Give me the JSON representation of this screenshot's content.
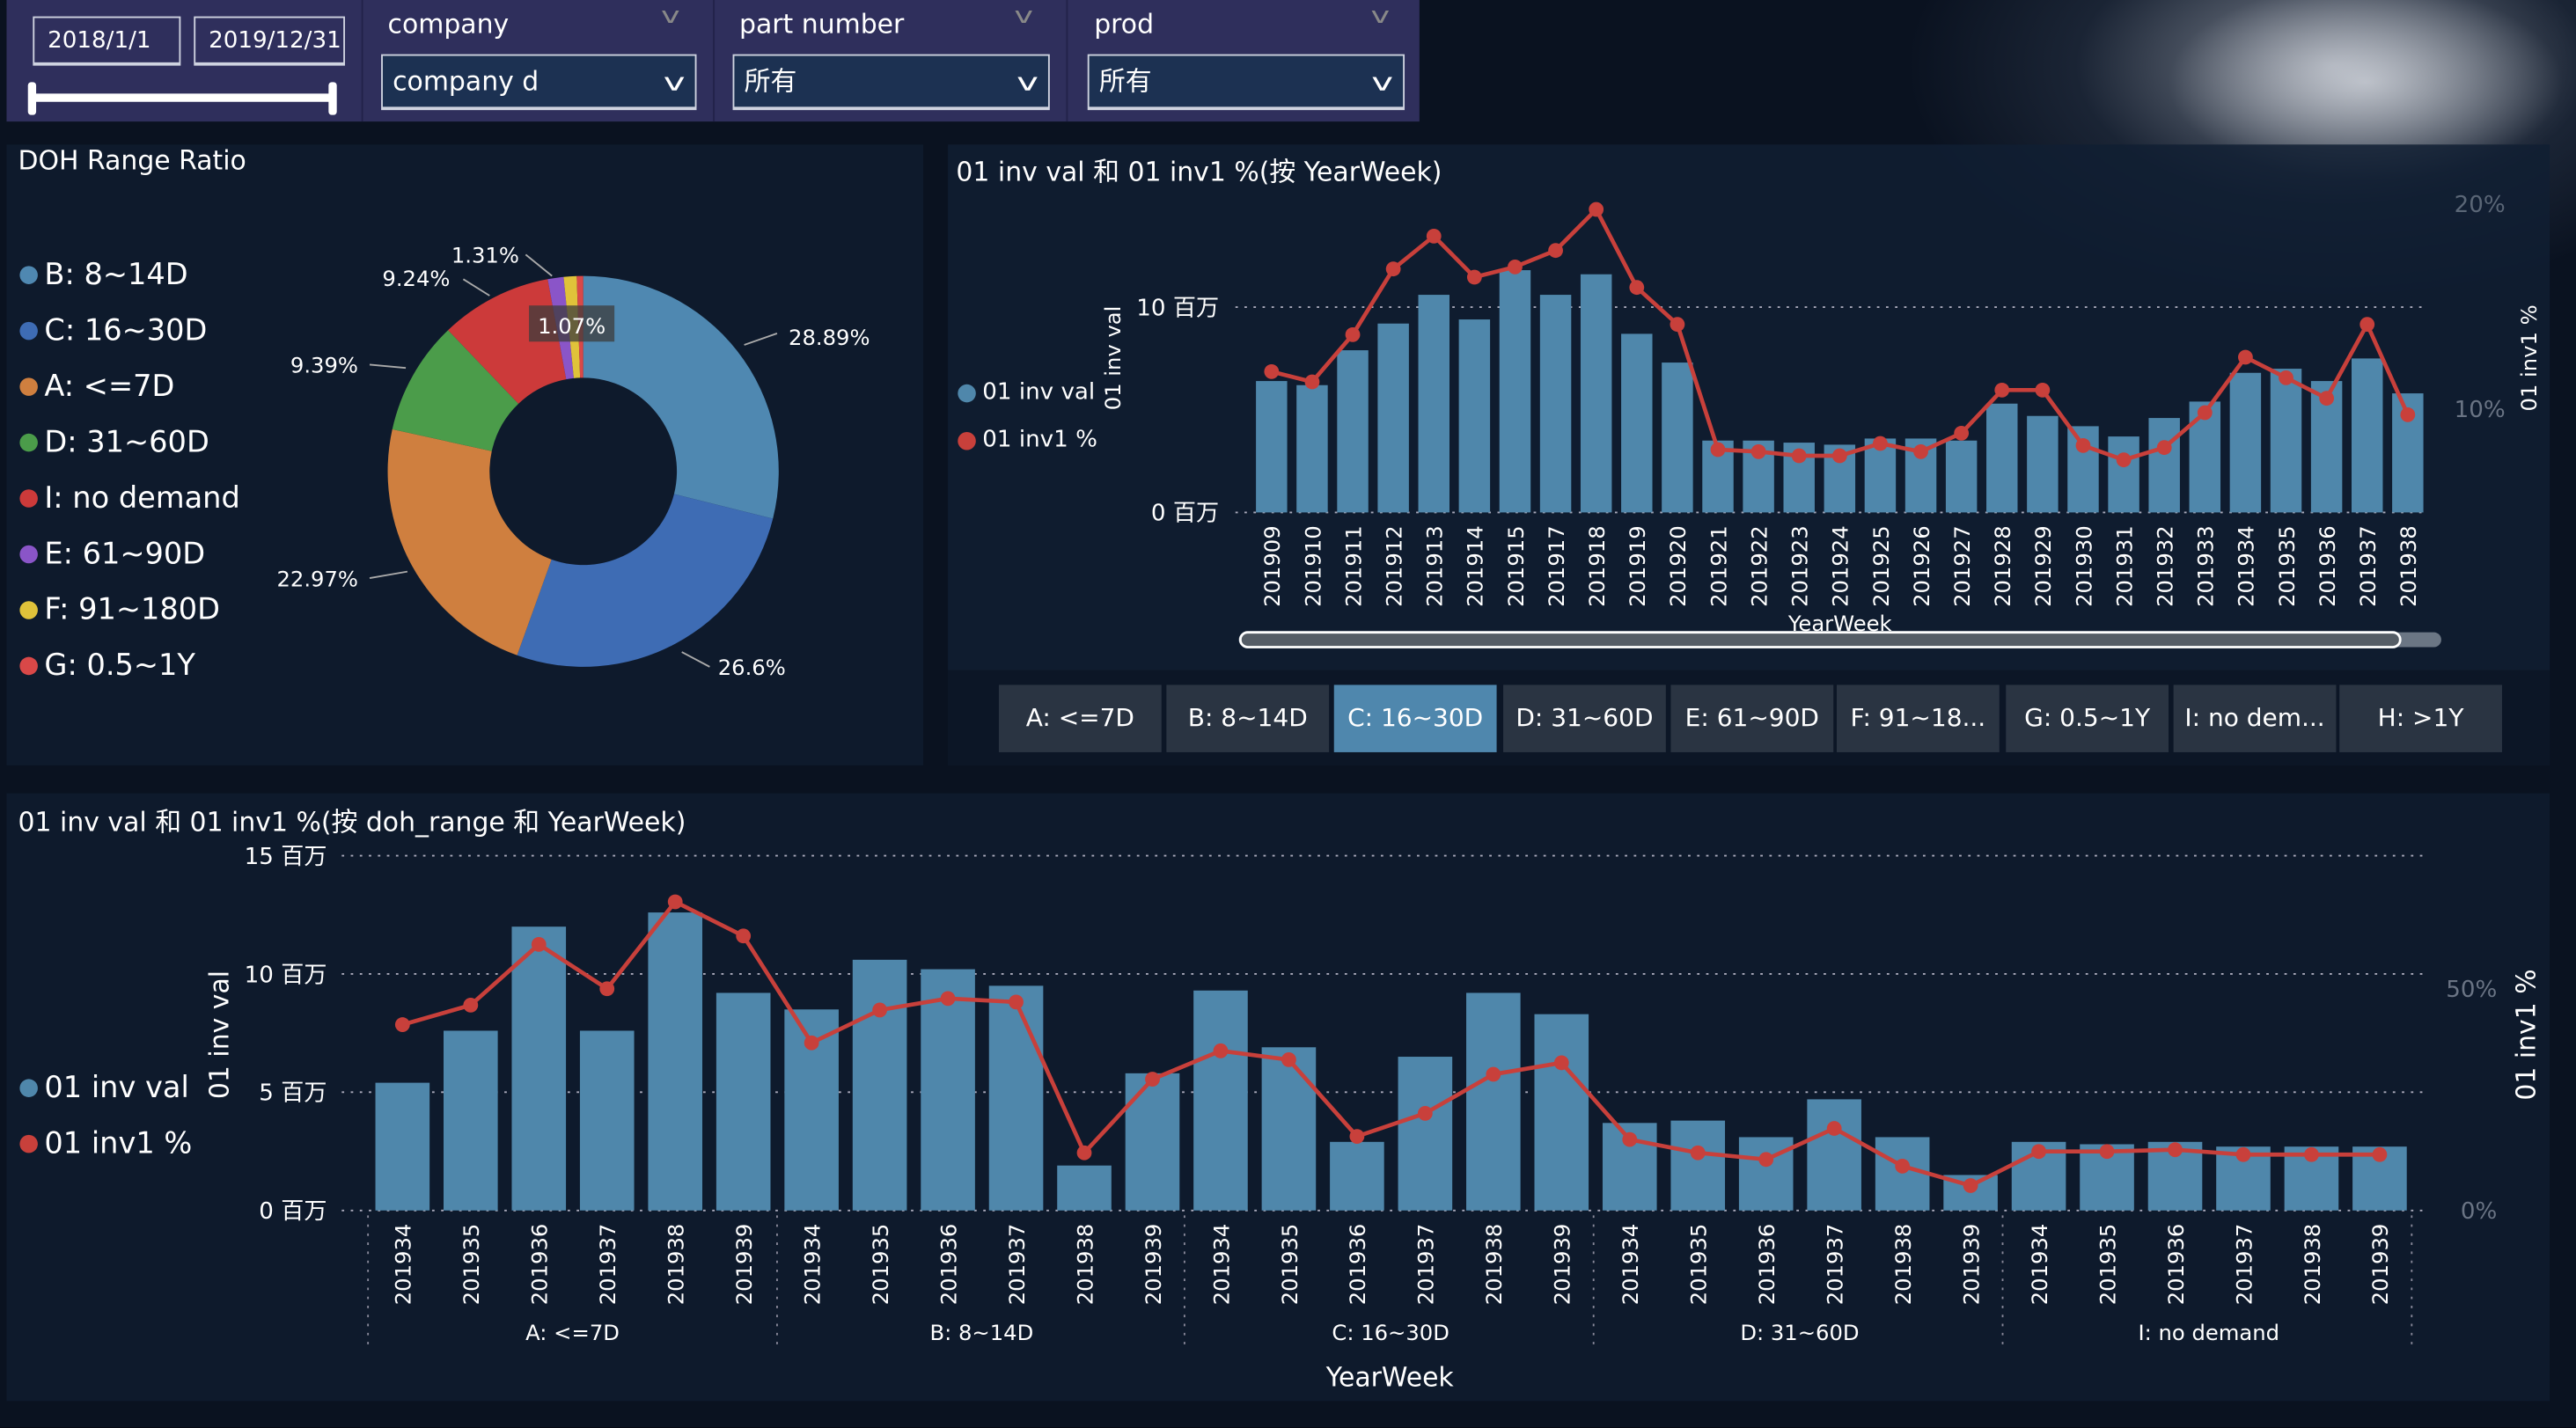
{
  "filters": {
    "date_start": "2018/1/1",
    "date_end": "2019/12/31",
    "company": {
      "title": "company",
      "value": "company d"
    },
    "part_number": {
      "title": "part number",
      "value": "所有"
    },
    "prod": {
      "title": "prod",
      "value": "所有"
    }
  },
  "donut": {
    "title": "DOH Range Ratio",
    "legend": [
      {
        "label": "B: 8~14D",
        "color": "#4f88b1"
      },
      {
        "label": "C: 16~30D",
        "color": "#3e6cb4"
      },
      {
        "label": "A: <=7D",
        "color": "#cf7f3f"
      },
      {
        "label": "D: 31~60D",
        "color": "#4b9c4a"
      },
      {
        "label": "I: no demand",
        "color": "#cc3a3a"
      },
      {
        "label": "E: 61~90D",
        "color": "#8a55c8"
      },
      {
        "label": "F: 91~180D",
        "color": "#e0c23a"
      },
      {
        "label": "G: 0.5~1Y",
        "color": "#d94848"
      }
    ],
    "labels": {
      "B": "28.89%",
      "C": "26.6%",
      "A": "22.97%",
      "D": "9.39%",
      "I": "9.24%",
      "E": "1.31%",
      "F": "1.07%"
    }
  },
  "chart_data": [
    {
      "type": "bar+line",
      "title": "01 inv val 和 01 inv1 %(按 YearWeek)",
      "xlabel": "YearWeek",
      "ylabel": "01 inv val",
      "y2label": "01 inv1 %",
      "legend": [
        "01 inv val",
        "01 inv1 %"
      ],
      "yticks": [
        "0 百万",
        "10 百万"
      ],
      "y2ticks": [
        "10%",
        "20%"
      ],
      "categories": [
        "201909",
        "201910",
        "201911",
        "201912",
        "201913",
        "201914",
        "201915",
        "201917",
        "201918",
        "201919",
        "201920",
        "201921",
        "201922",
        "201923",
        "201924",
        "201925",
        "201926",
        "201927",
        "201928",
        "201929",
        "201930",
        "201931",
        "201932",
        "201933",
        "201934",
        "201935",
        "201936",
        "201937",
        "201938"
      ],
      "inv_val_millions": [
        6.4,
        6.2,
        7.9,
        9.2,
        10.6,
        9.4,
        11.8,
        10.6,
        11.6,
        8.7,
        7.3,
        3.5,
        3.5,
        3.4,
        3.3,
        3.6,
        3.6,
        3.5,
        5.3,
        4.7,
        4.2,
        3.7,
        4.6,
        5.4,
        6.8,
        7.0,
        6.4,
        7.5,
        5.8
      ],
      "inv1_pct": [
        11.9,
        11.4,
        13.7,
        16.9,
        18.5,
        16.5,
        17.0,
        17.8,
        19.8,
        16.0,
        14.2,
        8.1,
        8.0,
        7.8,
        7.8,
        8.4,
        8.0,
        8.9,
        11.0,
        11.0,
        8.3,
        7.6,
        8.2,
        9.9,
        12.6,
        11.6,
        10.6,
        14.2,
        9.8
      ]
    },
    {
      "type": "bar+line",
      "title": "01 inv val 和 01 inv1 %(按 doh_range 和 YearWeek)",
      "xlabel": "YearWeek",
      "ylabel": "01 inv val",
      "y2label": "01 inv1 %",
      "legend": [
        "01 inv val",
        "01 inv1 %"
      ],
      "yticks": [
        "0 百万",
        "5 百万",
        "10 百万",
        "15 百万"
      ],
      "y2ticks": [
        "0%",
        "50%"
      ],
      "groups": [
        "A: <=7D",
        "B: 8~14D",
        "C: 16~30D",
        "D: 31~60D",
        "I: no demand"
      ],
      "weeks": [
        "201934",
        "201935",
        "201936",
        "201937",
        "201938",
        "201939"
      ],
      "inv_val_millions": [
        [
          5.4,
          7.6,
          12.0,
          7.6,
          12.6,
          9.2
        ],
        [
          8.5,
          10.6,
          10.2,
          9.5,
          1.9,
          5.8
        ],
        [
          9.3,
          6.9,
          2.9,
          6.5,
          9.2,
          8.3
        ],
        [
          3.7,
          3.8,
          3.1,
          4.7,
          3.1,
          1.5
        ],
        [
          2.9,
          2.8,
          2.9,
          2.7,
          2.7,
          2.7
        ]
      ],
      "inv1_pct": [
        [
          41.9,
          46.3,
          60,
          50,
          69.6,
          61.9
        ],
        [
          37.8,
          45.2,
          47.8,
          47,
          13,
          29.6
        ],
        [
          36,
          34,
          16.7,
          21.9,
          30.7,
          33.3
        ],
        [
          16,
          13,
          11.5,
          18.5,
          10,
          5.6
        ],
        [
          13.3,
          13.3,
          13.7,
          12.6,
          12.6,
          12.6
        ]
      ]
    }
  ],
  "range_buttons": [
    {
      "label": "A: <=7D",
      "active": false
    },
    {
      "label": "B: 8~14D",
      "active": false
    },
    {
      "label": "C: 16~30D",
      "active": true
    },
    {
      "label": "D: 31~60D",
      "active": false
    },
    {
      "label": "E: 61~90D",
      "active": false
    },
    {
      "label": "F: 91~18...",
      "active": false
    },
    {
      "label": "G: 0.5~1Y",
      "active": false
    },
    {
      "label": "I: no dem...",
      "active": false
    },
    {
      "label": "H: >1Y",
      "active": false
    }
  ],
  "colors": {
    "bar": "#4f87ab",
    "line": "#c8403b"
  }
}
